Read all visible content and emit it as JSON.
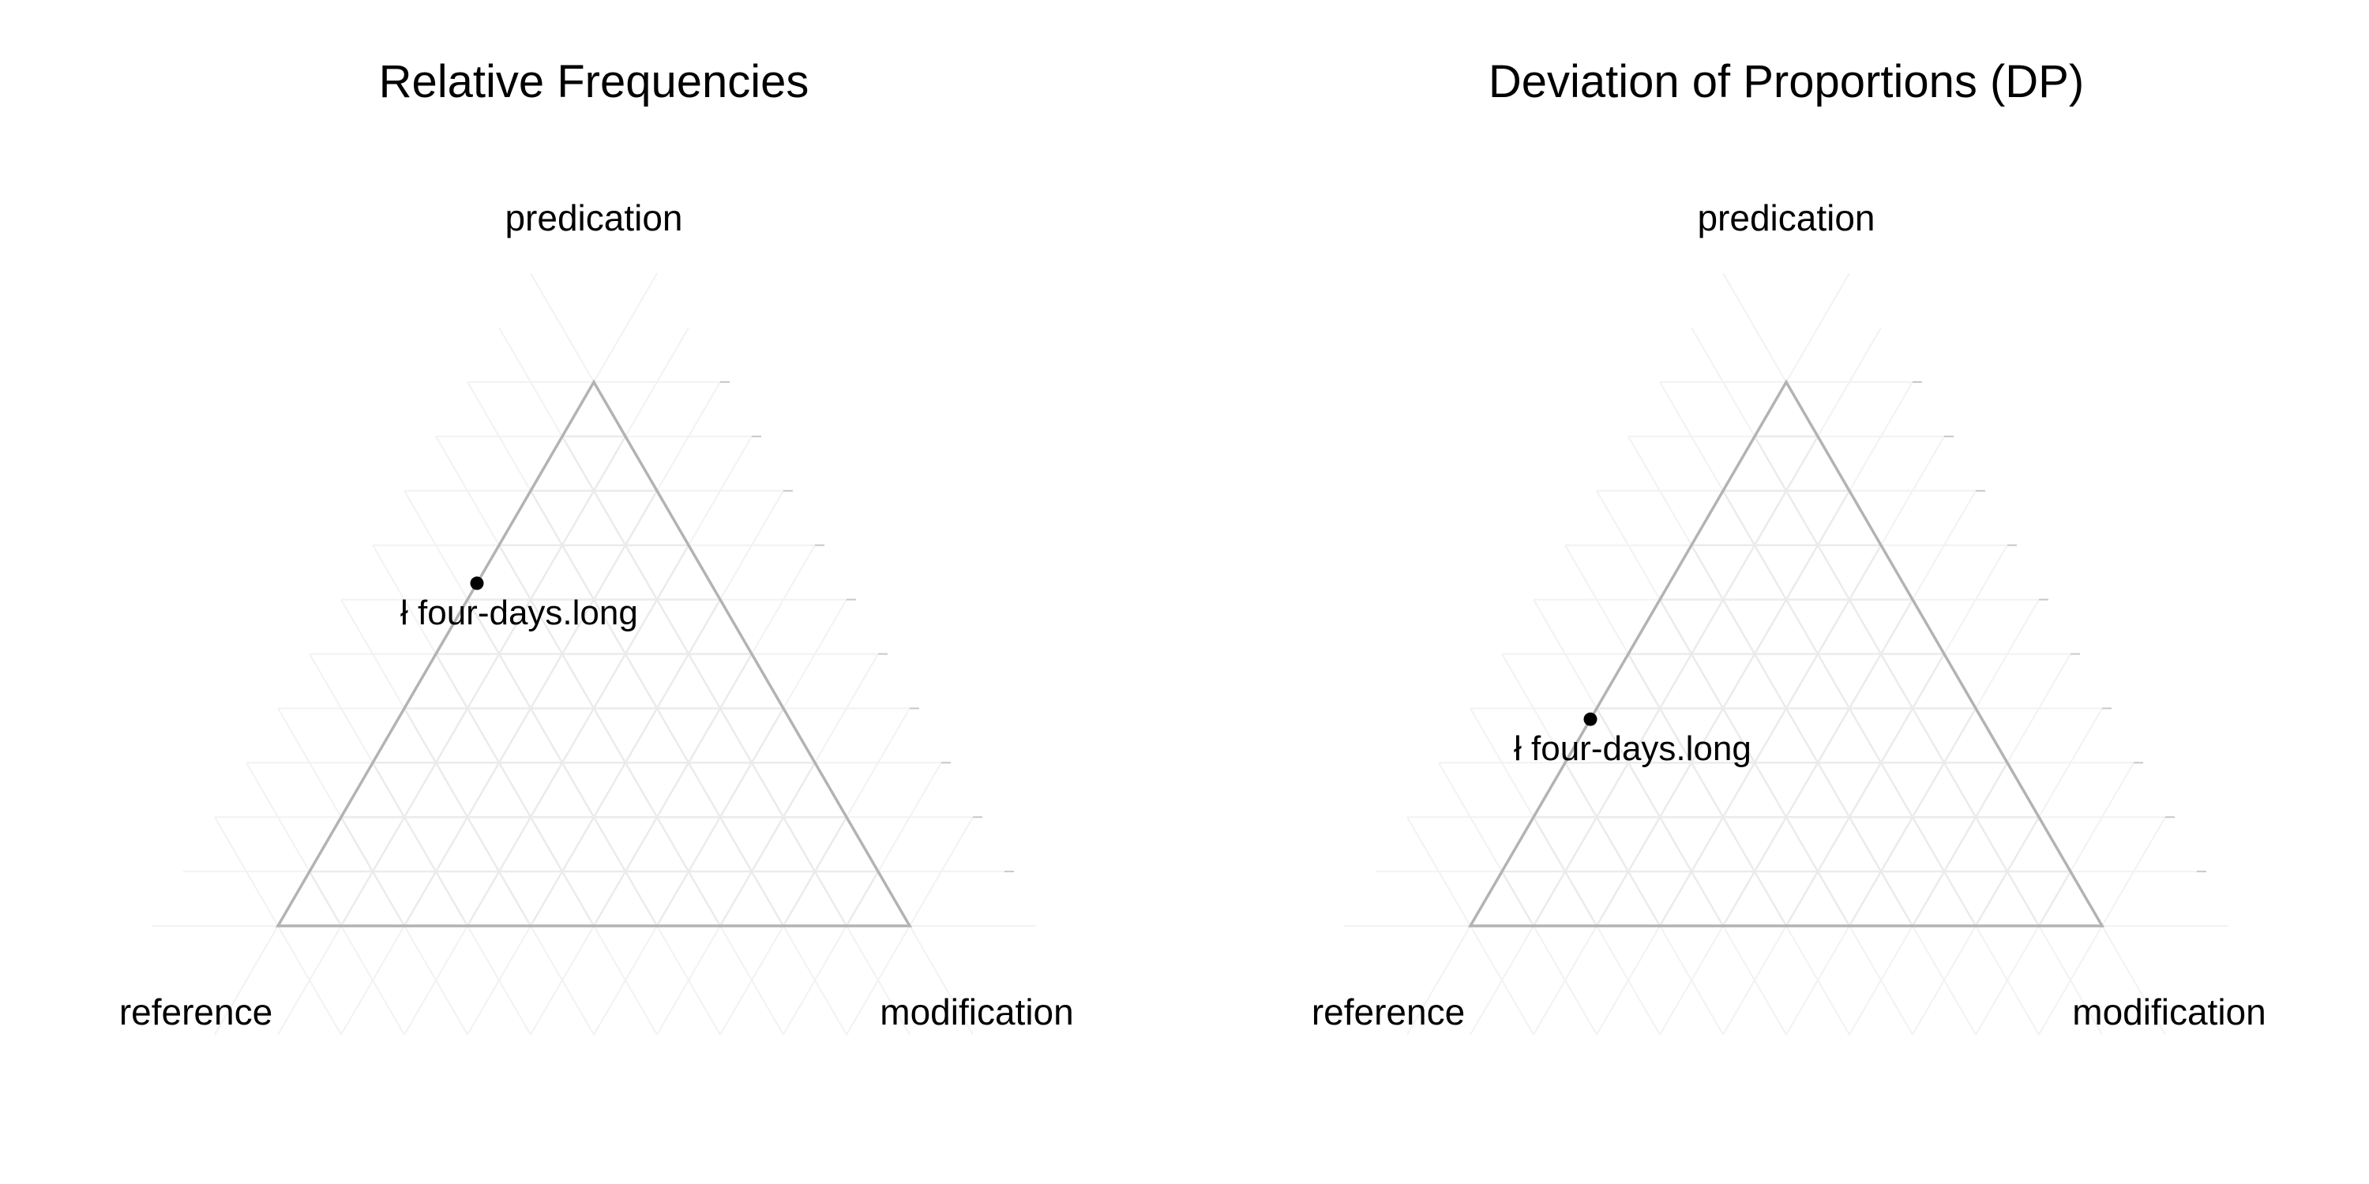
{
  "chart_data": [
    {
      "type": "scatter",
      "subtype": "ternary",
      "title": "Relative Frequencies",
      "axes": {
        "top": "predication",
        "left": "reference",
        "right": "modification"
      },
      "grid": true,
      "grid_step": 0.1,
      "points": [
        {
          "label": "ł four-days.long",
          "predication": 0.63,
          "reference": 0.37,
          "modification": 0.0
        }
      ]
    },
    {
      "type": "scatter",
      "subtype": "ternary",
      "title": "Deviation of Proportions (DP)",
      "axes": {
        "top": "predication",
        "left": "reference",
        "right": "modification"
      },
      "grid": true,
      "grid_step": 0.1,
      "points": [
        {
          "label": "ł four-days.long",
          "predication": 0.38,
          "reference": 0.62,
          "modification": 0.0
        }
      ]
    }
  ],
  "colors": {
    "background": "#ffffff",
    "triangle_border": "#b3b3b3",
    "grid": "#ebebeb",
    "grid_outer": "#f2f2f2",
    "point": "#000000",
    "text": "#000000"
  }
}
